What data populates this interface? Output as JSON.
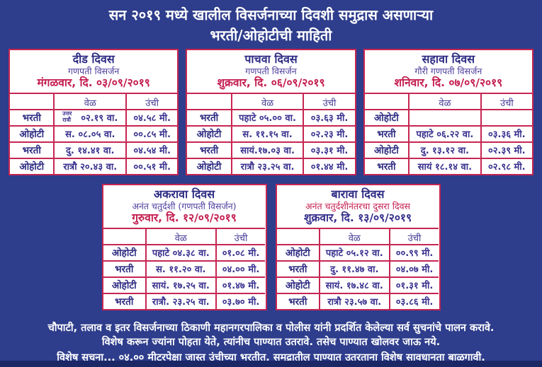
{
  "colors": {
    "background": "#2e3d8c",
    "table_border": "#c72652",
    "table_background": "#ffffff",
    "title_navy": "#2d2b83",
    "subtitle_purple": "#4b3e9e",
    "accent_red": "#c41d50",
    "cell_text_navy": "#3a318f",
    "footer_text": "#ffffff",
    "bottom_strip": "#1c2766"
  },
  "title": {
    "line1": "सन २०१९ मध्ये खालील विसर्जनाच्या दिवशी समुद्रास असणाऱ्या",
    "line2": "भरती/ओहोटीची माहिती"
  },
  "col_headers": {
    "time": "वेळ",
    "height": "उंची"
  },
  "tables": [
    {
      "title": "दीड दिवस",
      "subtitle": "गणपती विसर्जन",
      "subtitle_style": "purple",
      "date": "मंगळवार, दि. ०३/०९/२०१९",
      "date_style": "red",
      "rows": [
        {
          "label": "भरती",
          "time_prefix": "उत्तर रात्रौ",
          "time": "०२.१९ वा.",
          "height": "०४.५८ मी."
        },
        {
          "label": "ओहोटी",
          "time": "स. ०८.०५ वा.",
          "height": "००.८५ मी."
        },
        {
          "label": "भरती",
          "time": "दु. १४.४१ वा.",
          "height": "०४.५४ मी."
        },
        {
          "label": "ओहोटी",
          "time": "रात्रौ २०.४३ वा.",
          "height": "००.५१ मी."
        }
      ]
    },
    {
      "title": "पाचवा दिवस",
      "subtitle": "गणपती विसर्जन",
      "subtitle_style": "purple",
      "date": "शुक्रवार, दि. ०६/०९/२०१९",
      "date_style": "red",
      "rows": [
        {
          "label": "भरती",
          "time": "पहाटे ०५.०० वा.",
          "height": "०३.६३ मी."
        },
        {
          "label": "ओहोटी",
          "time": "स. ११.१५ वा.",
          "height": "०२.२३ मी."
        },
        {
          "label": "भरती",
          "time": "सायं.१७.०३ वा.",
          "height": "०३.३१ मी."
        },
        {
          "label": "ओहोटी",
          "time": "रात्रौ २३.२५ वा.",
          "height": "०१.४४ मी."
        }
      ]
    },
    {
      "title": "सहावा दिवस",
      "subtitle": "गौरी गणपती विसर्जन",
      "subtitle_style": "purple",
      "date": "शनिवार, दि. ०७/०९/२०१९",
      "date_style": "red",
      "rows": [
        {
          "label": "ओहोटी",
          "time": "",
          "height": ""
        },
        {
          "label": "भरती",
          "time": "पहाटे ०६.२२ वा.",
          "height": "०३.३६ मी."
        },
        {
          "label": "ओहोटी",
          "time": "दु. १३.१२ वा.",
          "height": "०२.३९ मी."
        },
        {
          "label": "भरती",
          "time": "सायं १८.१४ वा.",
          "height": "०२.९८ मी."
        }
      ]
    },
    {
      "title": "अकरावा दिवस",
      "subtitle": "अनंत चतुर्दशी (गणपती विसर्जन)",
      "subtitle_style": "purple",
      "date": "गुरुवार, दि. १२/०९/२०१९",
      "date_style": "red",
      "rows": [
        {
          "label": "ओहोटी",
          "time": "पहाटे ०४.३८ वा.",
          "height": "०१.०८ मी."
        },
        {
          "label": "भरती",
          "time": "स. ११.२० वा.",
          "height": "०४.०० मी."
        },
        {
          "label": "ओहोटी",
          "time": "सायं. १७.२५ वा.",
          "height": "०१.४७ मी."
        },
        {
          "label": "भरती",
          "time": "रात्रौ. २३.२५ वा.",
          "height": "०३.७० मी."
        }
      ]
    },
    {
      "title": "बारावा दिवस",
      "subtitle": "अनंत चतुर्दशीनंतरचा दुसरा दिवस",
      "subtitle_style": "red",
      "date": "शुक्रवार, दि. १३/०९/२०१९",
      "date_style": "navy",
      "rows": [
        {
          "label": "ओहोटी",
          "time": "पहाटे ०५.१२ वा.",
          "height": "००.९९ मी."
        },
        {
          "label": "भरती",
          "time": "दु. ११.४७ वा.",
          "height": "०४.०७ मी."
        },
        {
          "label": "ओहोटी",
          "time": "सायं. १७.४८ वा.",
          "height": "०१.३१ मी."
        },
        {
          "label": "भरती",
          "time": "रात्रौ २३.५७ वा.",
          "height": "०३.८६ मी."
        }
      ]
    }
  ],
  "footer": {
    "line1": "चौपाटी, तलाव व इतर विसर्जनाच्या ठिकाणी महानगरपालिका व पोलीस यांनी प्रदर्शित केलेल्या सर्व सुचनांचे पालन करावे.",
    "line2": "विशेष करून ज्यांना पोहता येते, त्यांनीच पाण्यात उतरावे. तसेच पाण्यात खोलवर जाऊ नये.",
    "line3": "विशेष सूचना... ०४.०० मीटरपेक्षा जास्त उंचीच्या भरतीत, समुद्रातील पाण्यात उतरताना विशेष सावधानता बाळगावी."
  }
}
